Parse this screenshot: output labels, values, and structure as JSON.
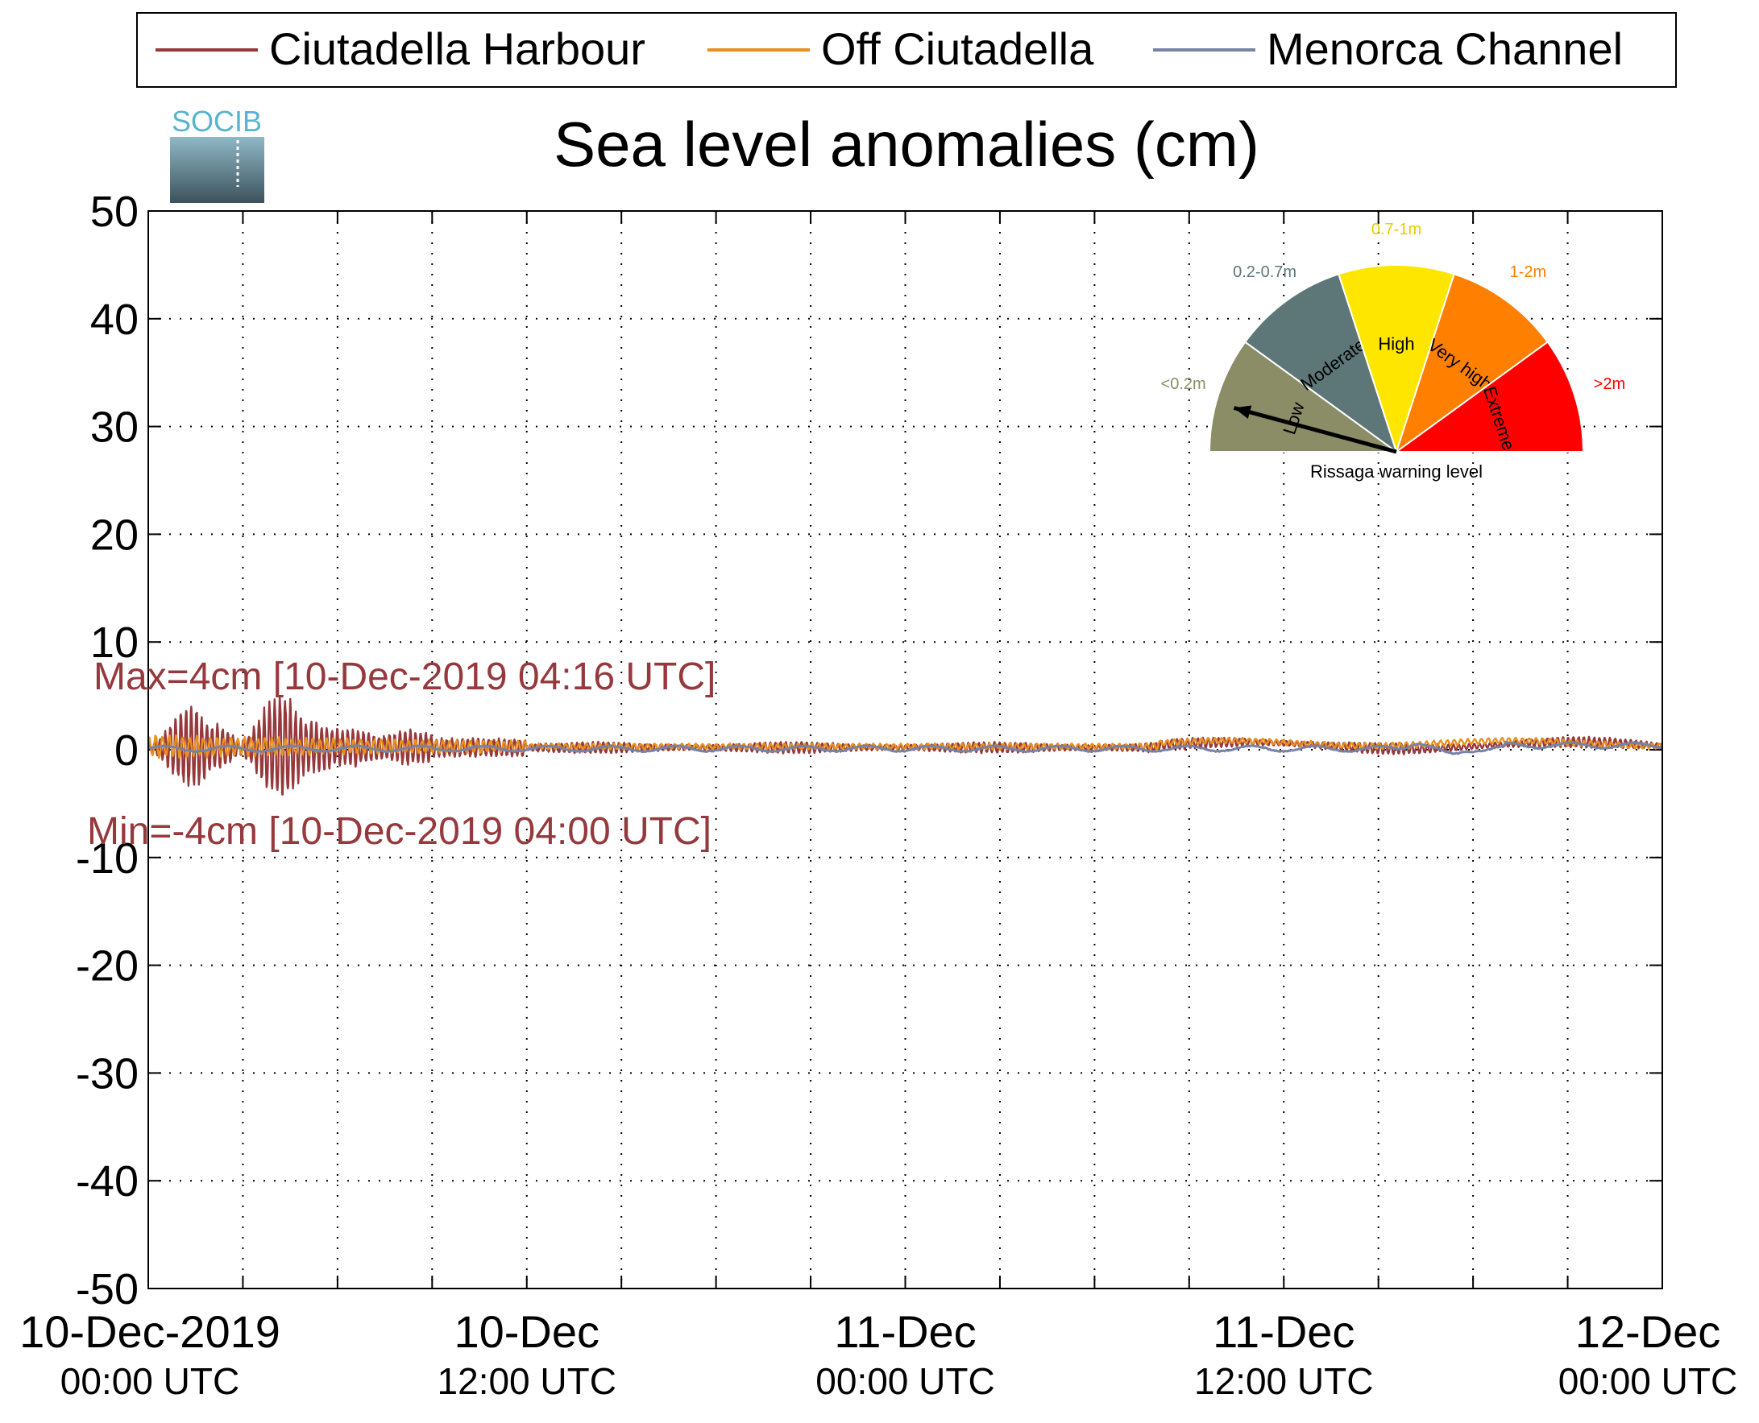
{
  "chart_data": {
    "type": "line",
    "title": "Sea level anomalies (cm)",
    "ylim": [
      -50,
      50
    ],
    "yticks": [
      -50,
      -40,
      -30,
      -20,
      -10,
      0,
      10,
      20,
      30,
      40,
      50
    ],
    "y_tick_labels": [
      "-50",
      "-40",
      "-30",
      "-20",
      "-10",
      "0",
      "10",
      "20",
      "30",
      "40",
      "50"
    ],
    "x_range_hours": [
      0,
      48
    ],
    "x_grid_hours": [
      0,
      3,
      6,
      9,
      12,
      15,
      18,
      21,
      24,
      27,
      30,
      33,
      36,
      39,
      42,
      45,
      48
    ],
    "x_tick_labels": [
      {
        "hour": 0,
        "line1": "10-Dec-2019",
        "line2": "00:00 UTC"
      },
      {
        "hour": 12,
        "line1": "10-Dec",
        "line2": "12:00 UTC"
      },
      {
        "hour": 24,
        "line1": "11-Dec",
        "line2": "00:00 UTC"
      },
      {
        "hour": 36,
        "line1": "11-Dec",
        "line2": "12:00 UTC"
      },
      {
        "hour": 48,
        "line1": "12-Dec",
        "line2": "00:00 UTC"
      }
    ],
    "grid": true,
    "legend_position": "top",
    "series": [
      {
        "name": "Ciutadella Harbour",
        "color": "#96393d",
        "key": "harbour"
      },
      {
        "name": "Off Ciutadella",
        "color": "#e8911e",
        "key": "off"
      },
      {
        "name": "Menorca Channel",
        "color": "#7683a5",
        "key": "channel"
      }
    ],
    "annotations": {
      "max": {
        "text": "Max=4cm [10-Dec-2019 04:16 UTC]",
        "value": 4,
        "color": "#96393d"
      },
      "min": {
        "text": "Min=-4cm [10-Dec-2019 04:00 UTC]",
        "value": -4,
        "color": "#96393d"
      }
    },
    "logo": {
      "text": "SOCIB"
    }
  },
  "gauge": {
    "title": "Rissaga warning level",
    "pointer_level": "Low",
    "sectors": [
      {
        "label": "Low",
        "range": "<0.2m",
        "color": "#8a8d66"
      },
      {
        "label": "Moderate",
        "range": "0.2-0.7m",
        "color": "#5d7778"
      },
      {
        "label": "High",
        "range": "0.7-1m",
        "color": "#ffe600"
      },
      {
        "label": "Very high",
        "range": "1-2m",
        "color": "#ff8000"
      },
      {
        "label": "Extreme",
        "range": ">2m",
        "color": "#ff0000"
      }
    ]
  }
}
